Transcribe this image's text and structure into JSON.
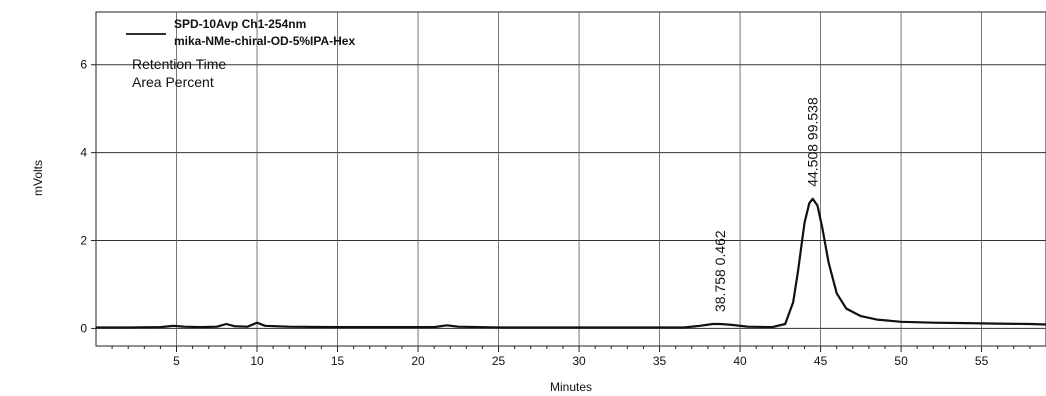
{
  "chart_data": {
    "type": "line",
    "title": "",
    "xlabel": "Minutes",
    "ylabel": "mVolts",
    "xlim": [
      0,
      59
    ],
    "ylim": [
      -0.4,
      7.2
    ],
    "x_ticks": [
      5,
      10,
      15,
      20,
      25,
      30,
      35,
      40,
      45,
      50,
      55
    ],
    "y_ticks": [
      0,
      2,
      4,
      6
    ],
    "grid": true,
    "legend": {
      "placement": "top-left",
      "line1": "SPD-10Avp Ch1-254nm",
      "line2": "mika-NMe-chiral-OD-5%IPA-Hex"
    },
    "annotations": [
      "Retention Time",
      "Area Percent"
    ],
    "peaks": [
      {
        "retention_time": "38.758",
        "area_percent": "0.462",
        "x": 38.758,
        "y": 0.1
      },
      {
        "retention_time": "44.508",
        "area_percent": "99.538",
        "x": 44.508,
        "y": 2.95
      }
    ],
    "series": [
      {
        "name": "SPD-10Avp Ch1-254nm",
        "points": [
          [
            0.0,
            0.02
          ],
          [
            2.0,
            0.02
          ],
          [
            4.0,
            0.03
          ],
          [
            4.8,
            0.06
          ],
          [
            5.5,
            0.04
          ],
          [
            6.5,
            0.03
          ],
          [
            7.5,
            0.04
          ],
          [
            8.1,
            0.1
          ],
          [
            8.6,
            0.05
          ],
          [
            9.4,
            0.04
          ],
          [
            10.0,
            0.13
          ],
          [
            10.5,
            0.06
          ],
          [
            12.0,
            0.04
          ],
          [
            15.0,
            0.03
          ],
          [
            18.0,
            0.03
          ],
          [
            21.0,
            0.03
          ],
          [
            21.8,
            0.07
          ],
          [
            22.5,
            0.04
          ],
          [
            25.0,
            0.02
          ],
          [
            28.0,
            0.02
          ],
          [
            31.0,
            0.02
          ],
          [
            34.0,
            0.02
          ],
          [
            36.5,
            0.02
          ],
          [
            37.5,
            0.06
          ],
          [
            38.3,
            0.1
          ],
          [
            38.758,
            0.1
          ],
          [
            39.5,
            0.08
          ],
          [
            40.5,
            0.04
          ],
          [
            42.0,
            0.03
          ],
          [
            42.8,
            0.1
          ],
          [
            43.3,
            0.6
          ],
          [
            43.6,
            1.3
          ],
          [
            44.0,
            2.4
          ],
          [
            44.3,
            2.85
          ],
          [
            44.508,
            2.95
          ],
          [
            44.8,
            2.8
          ],
          [
            45.1,
            2.3
          ],
          [
            45.5,
            1.5
          ],
          [
            46.0,
            0.8
          ],
          [
            46.6,
            0.45
          ],
          [
            47.5,
            0.28
          ],
          [
            48.5,
            0.2
          ],
          [
            50.0,
            0.15
          ],
          [
            52.0,
            0.13
          ],
          [
            54.0,
            0.12
          ],
          [
            56.0,
            0.11
          ],
          [
            58.0,
            0.1
          ],
          [
            59.0,
            0.09
          ]
        ]
      }
    ]
  }
}
